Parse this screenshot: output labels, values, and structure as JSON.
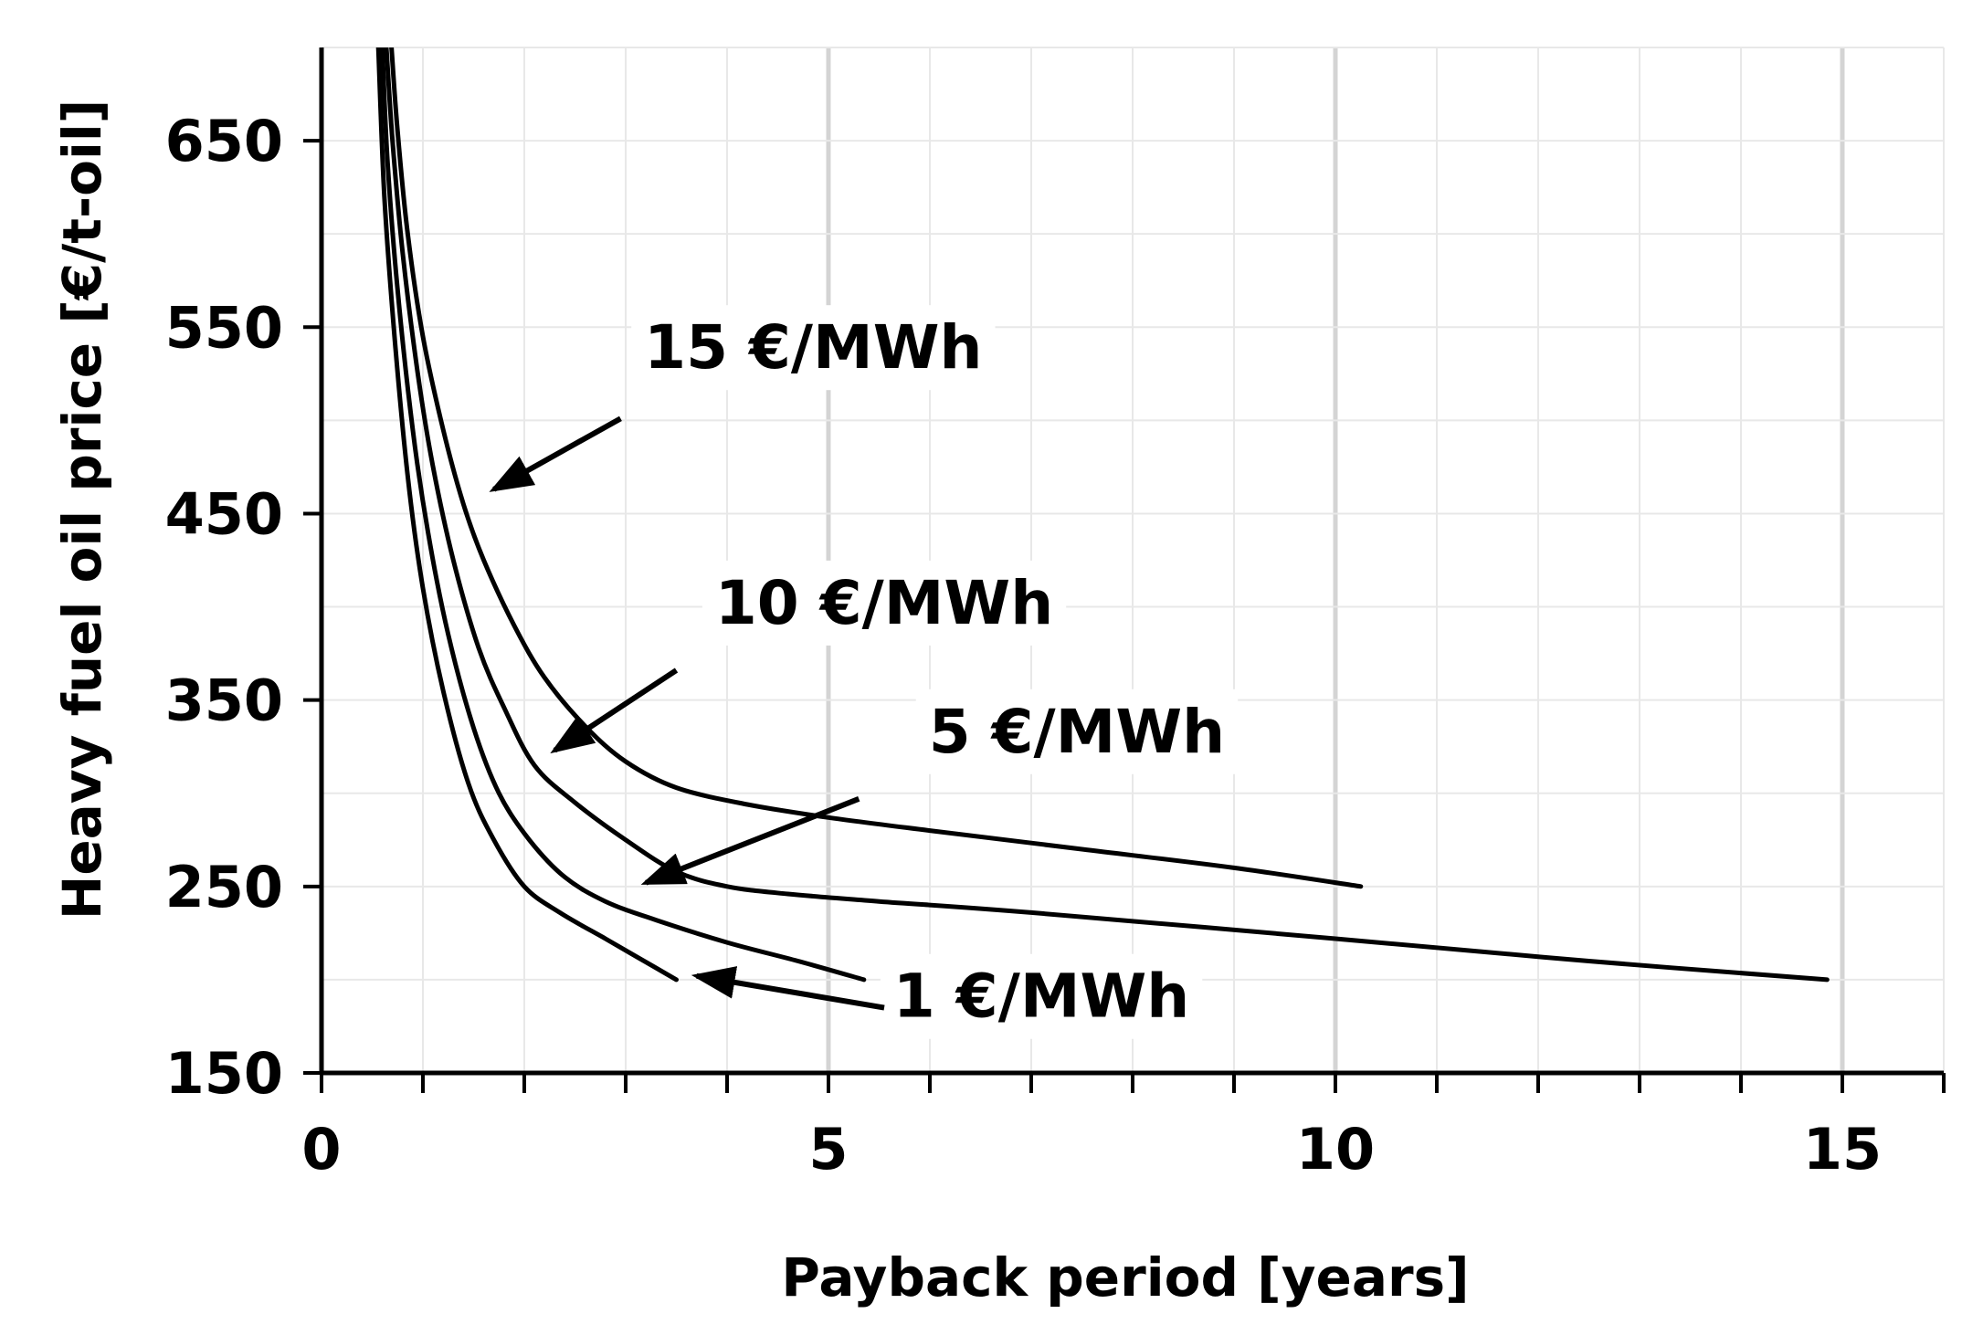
{
  "chart_data": {
    "type": "line",
    "title": "",
    "xlabel": "Payback period [years]",
    "ylabel": "Heavy fuel oil price [€/t-oil]",
    "xlim": [
      0,
      16
    ],
    "ylim": [
      150,
      700
    ],
    "xticks": [
      0,
      5,
      10,
      15
    ],
    "xtick_labels": [
      "0",
      "5",
      "10",
      "15"
    ],
    "x_minor_ticks": [
      1,
      2,
      3,
      4,
      6,
      7,
      8,
      9,
      11,
      12,
      13,
      14,
      16
    ],
    "yticks": [
      150,
      250,
      350,
      450,
      550,
      650
    ],
    "ytick_labels": [
      "150",
      "250",
      "350",
      "450",
      "550",
      "650"
    ],
    "grid": true,
    "colors": {
      "line": "#000000",
      "grid_minor": "#e8e8e8",
      "grid_major": "#d4d4d4",
      "axis": "#000000"
    },
    "series": [
      {
        "name": "15 €/MWh",
        "x": [
          0.69,
          0.75,
          0.85,
          1.0,
          1.2,
          1.4,
          1.6,
          1.9,
          2.2,
          2.6,
          3.0,
          3.5,
          4.2,
          5.0,
          6.0,
          7.5,
          9.0,
          10.25
        ],
        "y": [
          700,
          655,
          600,
          545,
          495,
          455,
          425,
          390,
          362,
          336,
          317,
          303,
          294,
          287,
          280,
          270,
          260,
          250
        ]
      },
      {
        "name": "10 €/MWh",
        "x": [
          0.64,
          0.7,
          0.8,
          0.95,
          1.1,
          1.3,
          1.55,
          1.8,
          2.1,
          2.5,
          3.0,
          3.5,
          4.0,
          4.6,
          5.5,
          7.0,
          10.0,
          12.5,
          14.85
        ],
        "y": [
          700,
          650,
          590,
          525,
          475,
          425,
          378,
          346,
          315,
          295,
          275,
          258,
          250,
          246,
          242,
          236,
          222,
          210,
          200
        ]
      },
      {
        "name": "5 €/MWh",
        "x": [
          0.6,
          0.65,
          0.75,
          0.9,
          1.05,
          1.25,
          1.5,
          1.75,
          2.05,
          2.4,
          2.8,
          3.3,
          4.0,
          4.7,
          5.35
        ],
        "y": [
          700,
          640,
          570,
          495,
          440,
          385,
          335,
          300,
          275,
          255,
          242,
          232,
          220,
          210,
          200
        ]
      },
      {
        "name": "1 €/MWh",
        "x": [
          0.56,
          0.62,
          0.72,
          0.85,
          1.0,
          1.2,
          1.45,
          1.7,
          2.0,
          2.35,
          2.8,
          3.15,
          3.5
        ],
        "y": [
          700,
          620,
          545,
          470,
          410,
          355,
          305,
          275,
          250,
          236,
          222,
          211,
          200
        ]
      }
    ],
    "annotations": [
      {
        "text": "15 €/MWh",
        "series": "15 €/MWh",
        "text_x": 4.85,
        "text_y": 528,
        "arrow_from": [
          2.95,
          501
        ],
        "arrow_to": [
          1.7,
          463
        ]
      },
      {
        "text": "10 €/MWh",
        "series": "10 €/MWh",
        "text_x": 5.55,
        "text_y": 391,
        "arrow_from": [
          3.5,
          366
        ],
        "arrow_to": [
          2.3,
          323
        ]
      },
      {
        "text": "5 €/MWh",
        "series": "5 €/MWh",
        "text_x": 7.45,
        "text_y": 322,
        "arrow_from": [
          5.3,
          297
        ],
        "arrow_to": [
          3.2,
          252
        ]
      },
      {
        "text": "1 €/MWh",
        "series": "1 €/MWh",
        "text_x": 7.1,
        "text_y": 180,
        "arrow_from": [
          5.55,
          185
        ],
        "arrow_to": [
          3.7,
          202
        ]
      }
    ]
  }
}
